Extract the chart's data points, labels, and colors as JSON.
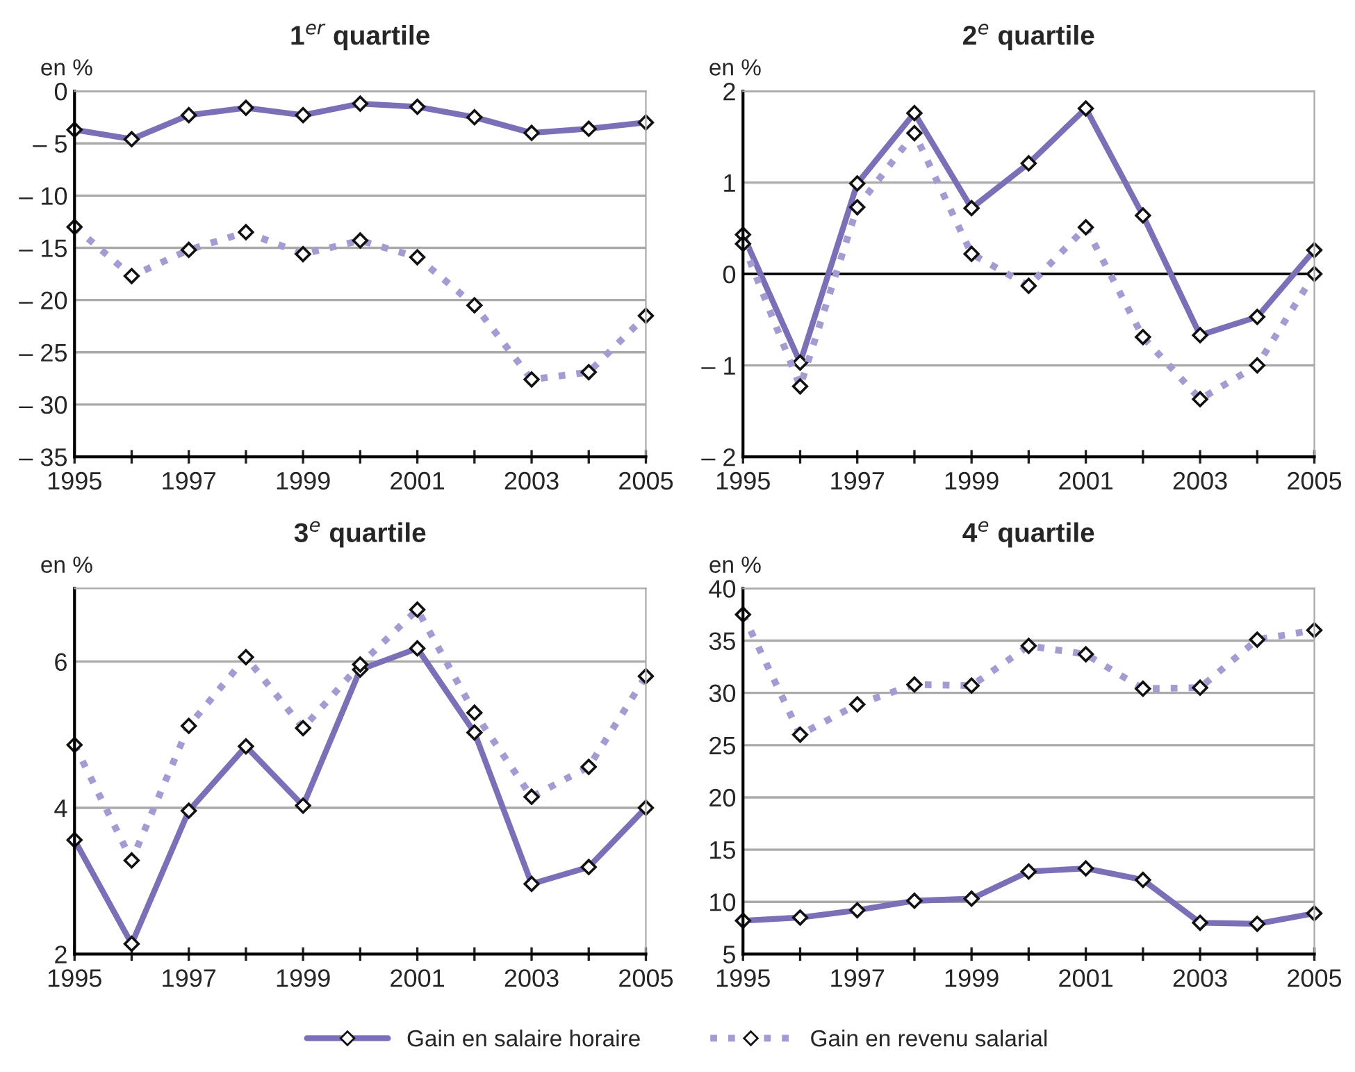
{
  "chart_data": [
    {
      "type": "line",
      "title": "1$^{er}$ quartile",
      "ylabel": "en %",
      "x": [
        1995,
        1996,
        1997,
        1998,
        1999,
        2000,
        2001,
        2002,
        2003,
        2004,
        2005
      ],
      "xlim": [
        1995,
        2005
      ],
      "xticks": [
        1995,
        {
          "value": 1996,
          "label": null
        },
        1997,
        {
          "value": 1998,
          "label": null
        },
        1999,
        {
          "value": 2000,
          "label": null
        },
        2001,
        {
          "value": 2002,
          "label": null
        },
        2003,
        {
          "value": 2004,
          "label": null
        },
        2005
      ],
      "ylim": [
        -35,
        0
      ],
      "yticks": [
        {
          "value": -35,
          "label": "– 35"
        },
        {
          "value": -30,
          "label": "– 30"
        },
        {
          "value": -25,
          "label": "– 25"
        },
        {
          "value": -20,
          "label": "– 20"
        },
        {
          "value": -15,
          "label": "– 15"
        },
        {
          "value": -10,
          "label": "– 10"
        },
        {
          "value": -5,
          "label": "– 5"
        },
        0
      ],
      "grid": "y",
      "marker": "diamond",
      "series": [
        {
          "color": "#7b70b8",
          "line_style": "solid",
          "values": [
            -3.7,
            -4.6,
            -2.3,
            -1.6,
            -2.3,
            -1.2,
            -1.5,
            -2.5,
            -4.0,
            -3.6,
            -3.0
          ]
        },
        {
          "color": "#a39bd2",
          "line_style": "dotted",
          "values": [
            -13.0,
            -17.7,
            -15.2,
            -13.5,
            -15.6,
            -14.3,
            -15.9,
            -20.5,
            -27.6,
            -26.9,
            -21.5
          ]
        }
      ]
    },
    {
      "type": "line",
      "title": "2$^{e}$ quartile",
      "ylabel": "en %",
      "x": [
        1995,
        1996,
        1997,
        1998,
        1999,
        2000,
        2001,
        2002,
        2003,
        2004,
        2005
      ],
      "xlim": [
        1995,
        2005
      ],
      "xticks": [
        1995,
        {
          "value": 1996,
          "label": null
        },
        1997,
        {
          "value": 1998,
          "label": null
        },
        1999,
        {
          "value": 2000,
          "label": null
        },
        2001,
        {
          "value": 2002,
          "label": null
        },
        2003,
        {
          "value": 2004,
          "label": null
        },
        2005
      ],
      "ylim": [
        -2,
        2
      ],
      "yticks": [
        {
          "value": -2,
          "label": "– 2"
        },
        {
          "value": -1,
          "label": "– 1"
        },
        0,
        1,
        2
      ],
      "grid": "y",
      "marker": "diamond",
      "ref_lines": [
        {
          "axis": "y",
          "value": 0,
          "color": "#000000"
        }
      ],
      "series": [
        {
          "color": "#7b70b8",
          "line_style": "solid",
          "values": [
            0.43,
            -0.97,
            0.99,
            1.76,
            0.72,
            1.21,
            1.81,
            0.64,
            -0.67,
            -0.47,
            0.26
          ]
        },
        {
          "color": "#a39bd2",
          "line_style": "dotted",
          "values": [
            0.33,
            -1.23,
            0.73,
            1.54,
            0.22,
            -0.13,
            0.51,
            -0.69,
            -1.37,
            -1.0,
            0.0
          ]
        }
      ]
    },
    {
      "type": "line",
      "title": "3$^{e}$ quartile",
      "ylabel": "en %",
      "x": [
        1995,
        1996,
        1997,
        1998,
        1999,
        2000,
        2001,
        2002,
        2003,
        2004,
        2005
      ],
      "xlim": [
        1995,
        2005
      ],
      "xticks": [
        1995,
        {
          "value": 1996,
          "label": null
        },
        1997,
        {
          "value": 1998,
          "label": null
        },
        1999,
        {
          "value": 2000,
          "label": null
        },
        2001,
        {
          "value": 2002,
          "label": null
        },
        2003,
        {
          "value": 2004,
          "label": null
        },
        2005
      ],
      "ylim": [
        2,
        7
      ],
      "yticks": [
        2,
        4,
        6
      ],
      "grid": "y",
      "marker": "diamond",
      "series": [
        {
          "color": "#7b70b8",
          "line_style": "solid",
          "values": [
            3.56,
            2.14,
            3.96,
            4.84,
            4.03,
            5.89,
            6.18,
            5.03,
            2.96,
            3.19,
            4.0
          ]
        },
        {
          "color": "#a39bd2",
          "line_style": "dotted",
          "values": [
            4.86,
            3.28,
            5.12,
            6.06,
            5.09,
            5.96,
            6.71,
            5.3,
            4.15,
            4.56,
            5.8
          ]
        }
      ]
    },
    {
      "type": "line",
      "title": "4$^{e}$ quartile",
      "ylabel": "en %",
      "x": [
        1995,
        1996,
        1997,
        1998,
        1999,
        2000,
        2001,
        2002,
        2003,
        2004,
        2005
      ],
      "xlim": [
        1995,
        2005
      ],
      "xticks": [
        1995,
        {
          "value": 1996,
          "label": null
        },
        1997,
        {
          "value": 1998,
          "label": null
        },
        1999,
        {
          "value": 2000,
          "label": null
        },
        2001,
        {
          "value": 2002,
          "label": null
        },
        2003,
        {
          "value": 2004,
          "label": null
        },
        2005
      ],
      "ylim": [
        5,
        40
      ],
      "yticks": [
        5,
        10,
        15,
        20,
        25,
        30,
        35,
        40
      ],
      "grid": "y",
      "marker": "diamond",
      "legend": "bottom",
      "series": [
        {
          "name": "Gain en salaire horaire",
          "color": "#7b70b8",
          "line_style": "solid",
          "values": [
            8.2,
            8.5,
            9.2,
            10.1,
            10.3,
            12.9,
            13.2,
            12.1,
            8.0,
            7.9,
            8.9
          ]
        },
        {
          "name": "Gain en revenu salarial",
          "color": "#a39bd2",
          "line_style": "dotted",
          "values": [
            37.5,
            26.0,
            28.9,
            30.8,
            30.7,
            34.5,
            33.7,
            30.4,
            30.5,
            35.1,
            36.0
          ]
        }
      ]
    }
  ]
}
